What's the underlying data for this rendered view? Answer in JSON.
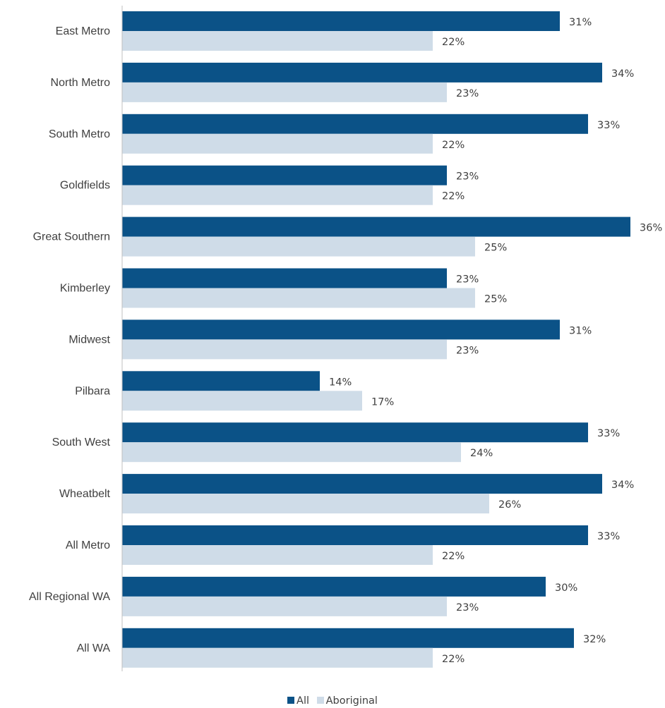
{
  "chart_data": {
    "type": "bar",
    "orientation": "horizontal",
    "title": "",
    "xlabel": "",
    "ylabel": "",
    "categories": [
      "East Metro",
      "North Metro",
      "South Metro",
      "Goldfields",
      "Great Southern",
      "Kimberley",
      "Midwest",
      "Pilbara",
      "South West",
      "Wheatbelt",
      "All Metro",
      "All Regional WA",
      "All WA"
    ],
    "series": [
      {
        "name": "All",
        "color": "#0B5287",
        "values": [
          31,
          34,
          33,
          23,
          36,
          23,
          31,
          14,
          33,
          34,
          33,
          30,
          32
        ],
        "labels": [
          "31%",
          "34%",
          "33%",
          "23%",
          "36%",
          "23%",
          "31%",
          "14%",
          "33%",
          "34%",
          "33%",
          "30%",
          "32%"
        ]
      },
      {
        "name": "Aboriginal",
        "color": "#CFDCE8",
        "values": [
          22,
          23,
          22,
          22,
          25,
          25,
          23,
          17,
          24,
          26,
          22,
          23,
          22
        ],
        "labels": [
          "22%",
          "23%",
          "22%",
          "22%",
          "25%",
          "25%",
          "23%",
          "17%",
          "24%",
          "26%",
          "22%",
          "23%",
          "22%"
        ]
      }
    ],
    "value_axis_visible": false,
    "grid": false,
    "legend_position": "bottom-center",
    "data_labels": true
  }
}
